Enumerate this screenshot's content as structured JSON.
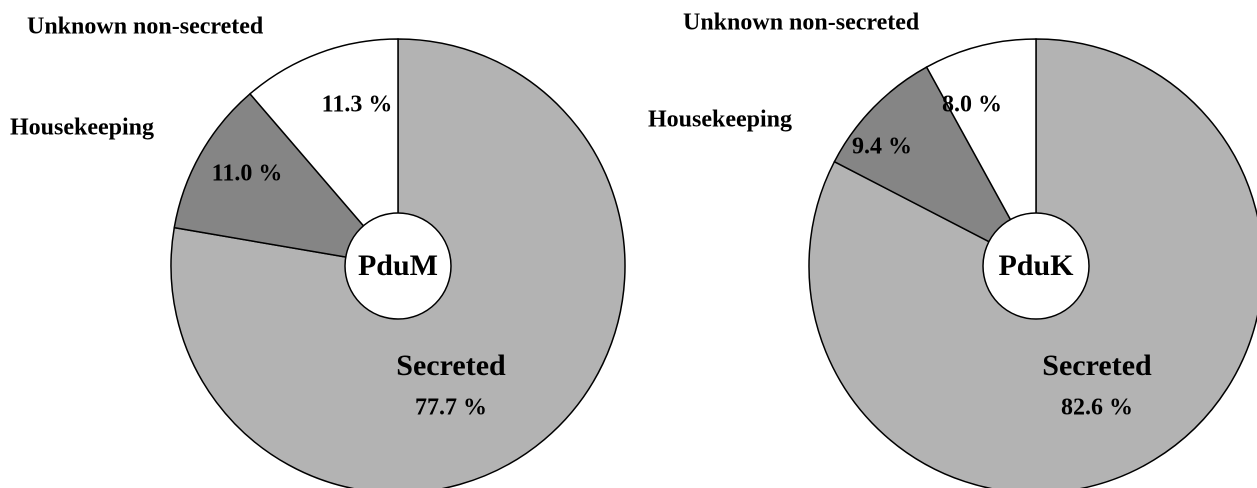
{
  "chart_data": [
    {
      "type": "pie",
      "center_label": "PduM",
      "categories": [
        "Secreted",
        "Housekeeping",
        "Unknown non-secreted"
      ],
      "values": [
        77.7,
        11.0,
        11.3
      ],
      "value_labels": [
        "77.7 %",
        "11.0 %",
        "11.3 %"
      ],
      "colors": [
        "#b3b3b3",
        "#858585",
        "#ffffff"
      ]
    },
    {
      "type": "pie",
      "center_label": "PduK",
      "categories": [
        "Secreted",
        "Housekeeping",
        "Unknown non-secreted"
      ],
      "values": [
        82.6,
        9.4,
        8.0
      ],
      "value_labels": [
        "82.6 %",
        "9.4 %",
        "8.0 %"
      ],
      "colors": [
        "#b3b3b3",
        "#858585",
        "#ffffff"
      ]
    }
  ]
}
